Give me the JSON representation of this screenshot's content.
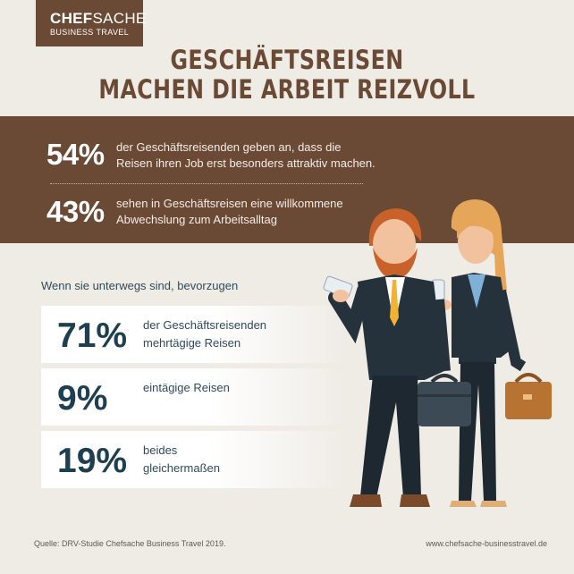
{
  "logo": {
    "brand_bold": "CHEF",
    "brand_light": "SACHE",
    "sub": "BUSINESS TRAVEL"
  },
  "title": {
    "line1": "GESCHÄFTSREISEN",
    "line2": "MACHEN DIE ARBEIT REIZVOLL"
  },
  "top_stats": [
    {
      "pct": "54%",
      "line1": "der Geschäftsreisenden geben an, dass die",
      "line2": "Reisen ihren Job erst besonders attraktiv machen."
    },
    {
      "pct": "43%",
      "line1": "sehen in Geschäftsreisen eine willkommene",
      "line2": "Abwechslung zum Arbeitsalltag"
    }
  ],
  "subhead": "Wenn sie unterwegs sind, bevorzugen",
  "cards": [
    {
      "pct": "71%",
      "line1": "der Geschäftsreisenden",
      "line2": "mehrtägige Reisen"
    },
    {
      "pct": "9%",
      "line1": "eintägige Reisen",
      "line2": ""
    },
    {
      "pct": "19%",
      "line1": "beides",
      "line2": "gleichermaßen"
    }
  ],
  "footer": {
    "source": "Quelle: DRV-Studie Chefsache Business Travel 2019.",
    "url": "www.chefsache-businesstravel.de"
  },
  "colors": {
    "brown": "#6b4a35",
    "background": "#efece6",
    "navy": "#1d3f4f"
  }
}
